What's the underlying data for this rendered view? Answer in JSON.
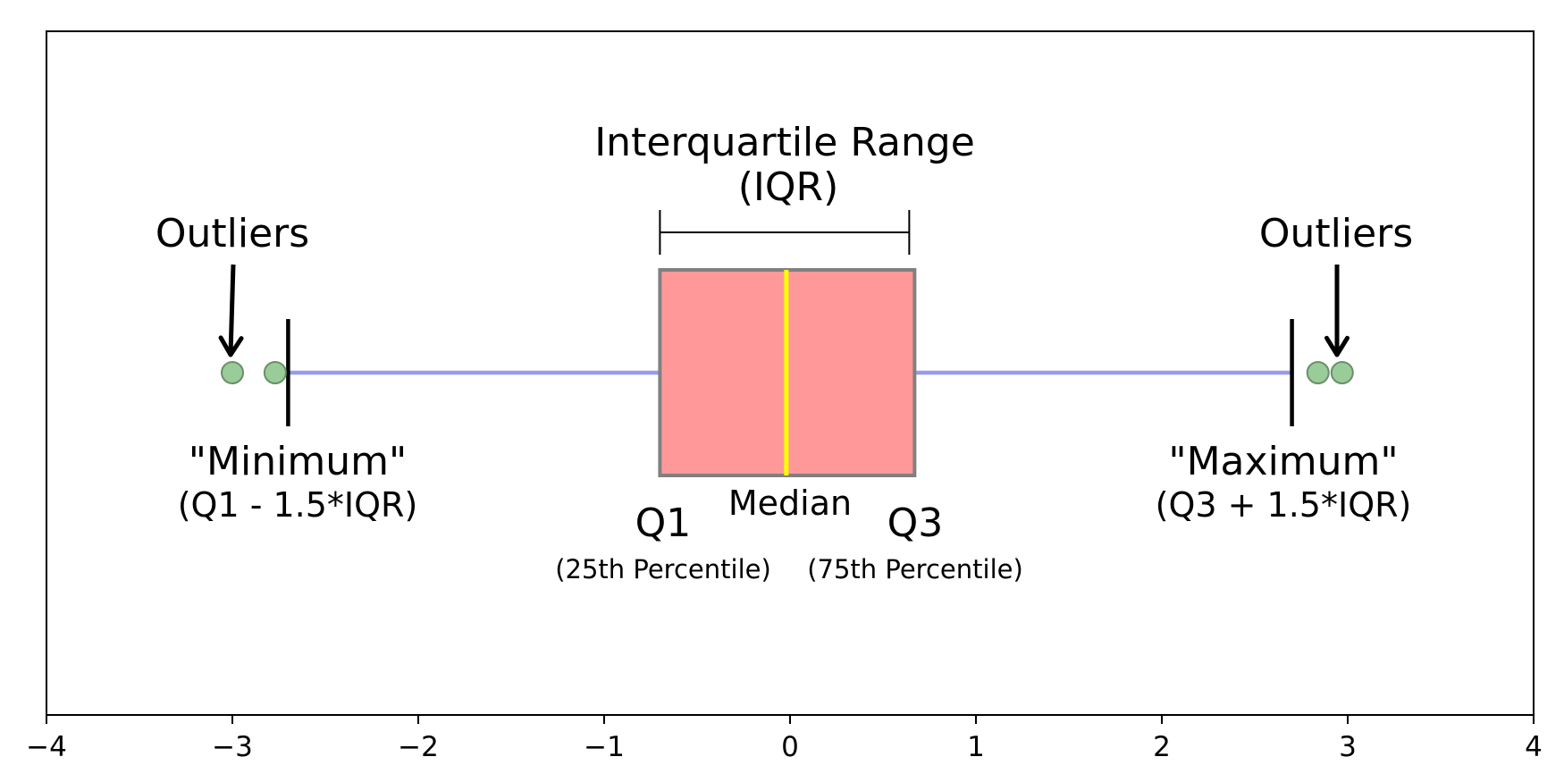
{
  "chart_data": {
    "type": "boxplot",
    "orientation": "horizontal",
    "xlim": [
      -4,
      4
    ],
    "x_ticks": [
      -4,
      -3,
      -2,
      -1,
      0,
      1,
      2,
      3,
      4
    ],
    "x_tick_labels": [
      "−4",
      "−3",
      "−2",
      "−1",
      "0",
      "1",
      "2",
      "3",
      "4"
    ],
    "grid": false,
    "box": {
      "q1": -0.7,
      "median": -0.02,
      "q3": 0.67,
      "whisker_low": -2.7,
      "whisker_high": 2.7
    },
    "outliers": [
      -3.0,
      -2.77,
      2.84,
      2.97
    ],
    "colors": {
      "box_fill": "#ff9999",
      "box_edge": "#808080",
      "median": "#ffff00",
      "whisker": "#9999ee",
      "cap": "#000000",
      "outlier_fill": "#99cc99",
      "outlier_edge": "#6a8f6a",
      "annotation": "#000000"
    },
    "annotations": {
      "iqr_title": "Interquartile Range",
      "iqr_sub": "(IQR)",
      "outliers_left": "Outliers",
      "outliers_right": "Outliers",
      "minimum": "\"Minimum\"",
      "minimum_formula": "(Q1 - 1.5*IQR)",
      "maximum": "\"Maximum\"",
      "maximum_formula": "(Q3 + 1.5*IQR)",
      "median": "Median",
      "q1": "Q1",
      "q1_sub": "(25th Percentile)",
      "q3": "Q3",
      "q3_sub": "(75th Percentile)"
    }
  }
}
